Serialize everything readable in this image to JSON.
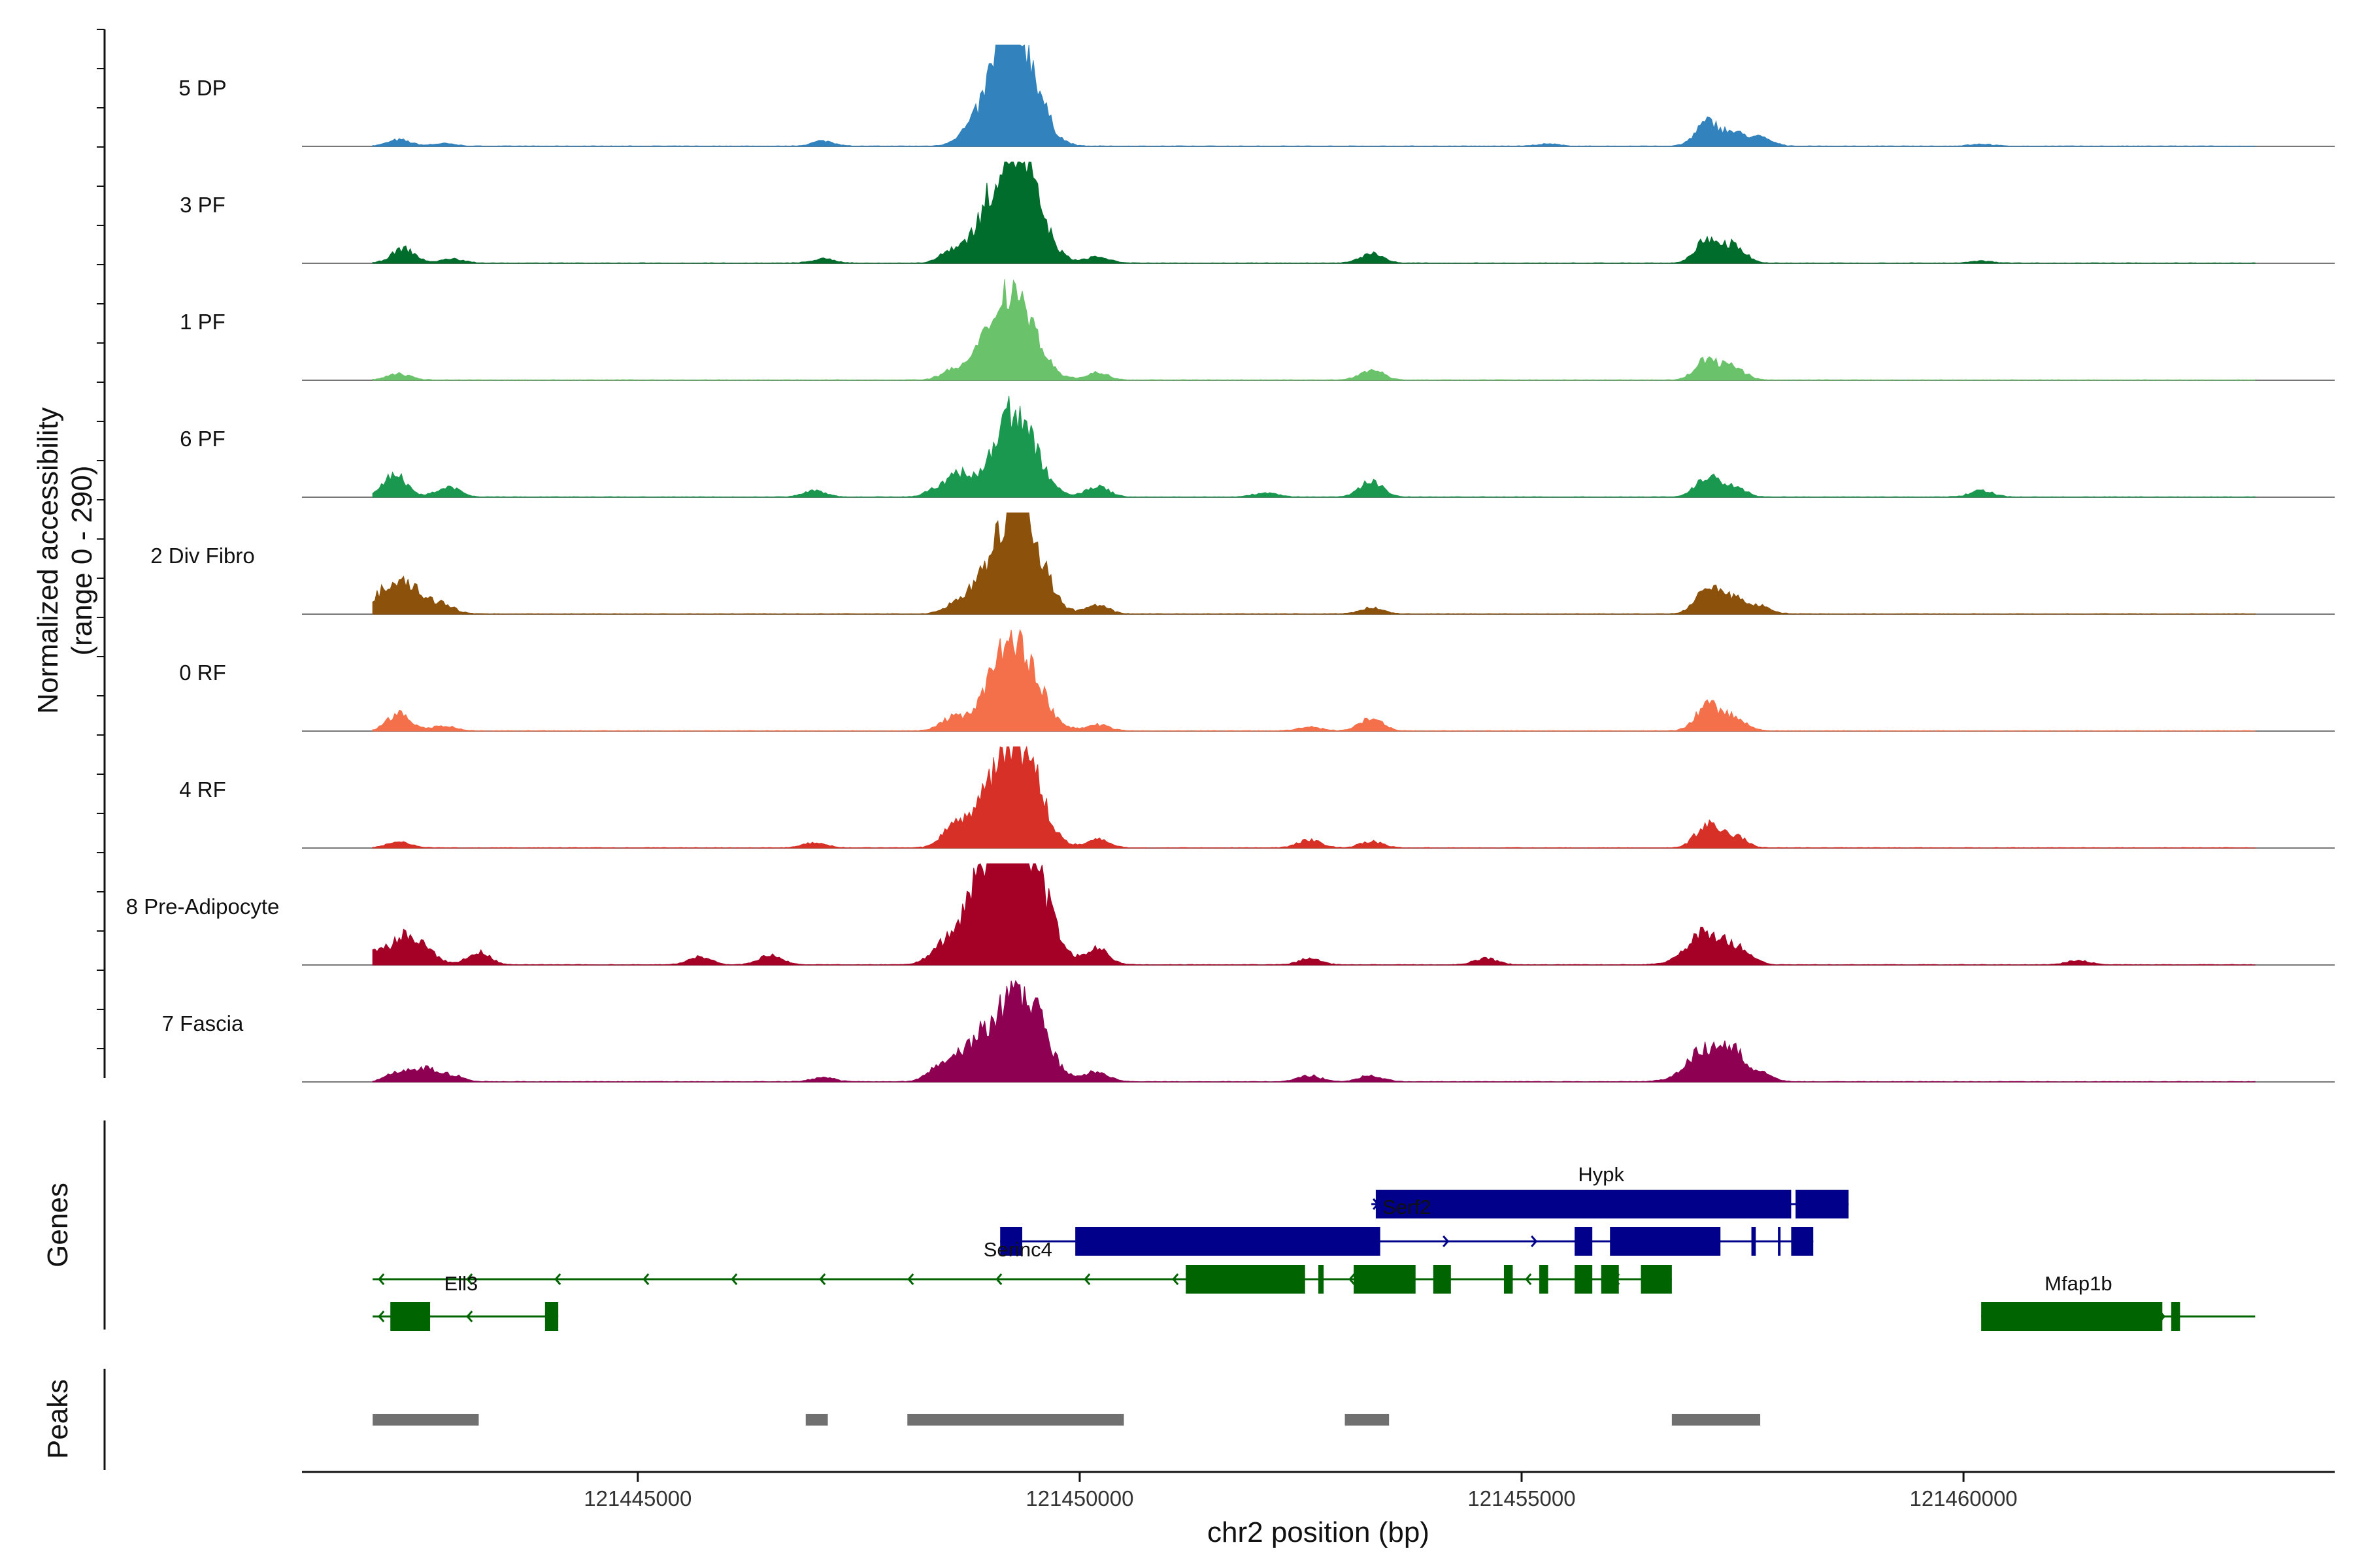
{
  "chart_data": {
    "type": "area",
    "title": "",
    "ylabel": "Normalized accessibility",
    "ylabel_range": "(range 0 - 290)",
    "xlabel": "chr2 position (bp)",
    "x_range": [
      121441200,
      121464200
    ],
    "y_range": [
      0,
      290
    ],
    "x_ticks": [
      {
        "value": 121445000,
        "label": "121445000"
      },
      {
        "value": 121450000,
        "label": "121450000"
      },
      {
        "value": 121455000,
        "label": "121455000"
      },
      {
        "value": 121460000,
        "label": "121460000"
      }
    ],
    "tracks": [
      {
        "name": "5 DP",
        "color": "#3182bd",
        "peaks": [
          [
            121442300,
            0.06
          ],
          [
            121442800,
            0.025
          ],
          [
            121447100,
            0.05
          ],
          [
            121448700,
            0.07
          ],
          [
            121449100,
            0.38
          ],
          [
            121449250,
            0.6
          ],
          [
            121449350,
            0.42
          ],
          [
            121455300,
            0.02
          ],
          [
            121457100,
            0.23
          ],
          [
            121457400,
            0.12
          ],
          [
            121457700,
            0.08
          ],
          [
            121460200,
            0.02
          ]
        ]
      },
      {
        "name": "3 PF",
        "color": "#006d2c",
        "peaks": [
          [
            121442350,
            0.14
          ],
          [
            121442900,
            0.04
          ],
          [
            121447100,
            0.04
          ],
          [
            121448550,
            0.1
          ],
          [
            121449000,
            0.35
          ],
          [
            121449250,
            0.62
          ],
          [
            121449400,
            0.4
          ],
          [
            121450200,
            0.06
          ],
          [
            121453300,
            0.09
          ],
          [
            121457100,
            0.22
          ],
          [
            121457400,
            0.17
          ],
          [
            121460200,
            0.02
          ]
        ]
      },
      {
        "name": "1 PF",
        "color": "#6ac36a",
        "peaks": [
          [
            121442300,
            0.06
          ],
          [
            121448550,
            0.08
          ],
          [
            121448800,
            0.06
          ],
          [
            121449150,
            0.6
          ],
          [
            121449350,
            0.4
          ],
          [
            121450200,
            0.07
          ],
          [
            121453300,
            0.1
          ],
          [
            121457100,
            0.2
          ],
          [
            121457400,
            0.12
          ]
        ]
      },
      {
        "name": "6 PF",
        "color": "#1a9850",
        "peaks": [
          [
            121442250,
            0.22
          ],
          [
            121442850,
            0.1
          ],
          [
            121447000,
            0.06
          ],
          [
            121448400,
            0.08
          ],
          [
            121448650,
            0.2
          ],
          [
            121449200,
            0.55
          ],
          [
            121449350,
            0.35
          ],
          [
            121450200,
            0.1
          ],
          [
            121452100,
            0.04
          ],
          [
            121453300,
            0.15
          ],
          [
            121457100,
            0.2
          ],
          [
            121457400,
            0.1
          ],
          [
            121460200,
            0.06
          ]
        ]
      },
      {
        "name": "2 Div Fibro",
        "color": "#8c510a",
        "peaks": [
          [
            121442300,
            0.35
          ],
          [
            121442800,
            0.08
          ],
          [
            121448600,
            0.1
          ],
          [
            121448850,
            0.18
          ],
          [
            121449250,
            0.82
          ],
          [
            121449400,
            0.4
          ],
          [
            121450200,
            0.08
          ],
          [
            121453300,
            0.06
          ],
          [
            121457100,
            0.28
          ],
          [
            121457400,
            0.15
          ],
          [
            121457700,
            0.07
          ]
        ]
      },
      {
        "name": "0 RF",
        "color": "#f4704a",
        "peaks": [
          [
            121442300,
            0.17
          ],
          [
            121442800,
            0.05
          ],
          [
            121448550,
            0.12
          ],
          [
            121448850,
            0.08
          ],
          [
            121449200,
            0.68
          ],
          [
            121449400,
            0.35
          ],
          [
            121450200,
            0.06
          ],
          [
            121452600,
            0.04
          ],
          [
            121453300,
            0.12
          ],
          [
            121457100,
            0.25
          ],
          [
            121457400,
            0.13
          ]
        ]
      },
      {
        "name": "4 RF",
        "color": "#d73027",
        "peaks": [
          [
            121442300,
            0.06
          ],
          [
            121447000,
            0.05
          ],
          [
            121448550,
            0.12
          ],
          [
            121448900,
            0.35
          ],
          [
            121449250,
            0.68
          ],
          [
            121449400,
            0.4
          ],
          [
            121450200,
            0.08
          ],
          [
            121452600,
            0.08
          ],
          [
            121453300,
            0.06
          ],
          [
            121457100,
            0.22
          ],
          [
            121457400,
            0.12
          ]
        ]
      },
      {
        "name": "8 Pre-Adipocyte",
        "color": "#a50026",
        "peaks": [
          [
            121442050,
            0.12
          ],
          [
            121442350,
            0.25
          ],
          [
            121442600,
            0.15
          ],
          [
            121443200,
            0.12
          ],
          [
            121445700,
            0.08
          ],
          [
            121446500,
            0.1
          ],
          [
            121448400,
            0.12
          ],
          [
            121448850,
            0.55
          ],
          [
            121449050,
            0.45
          ],
          [
            121449300,
            0.85
          ],
          [
            121449500,
            0.45
          ],
          [
            121450200,
            0.15
          ],
          [
            121452600,
            0.06
          ],
          [
            121454600,
            0.06
          ],
          [
            121457100,
            0.32
          ],
          [
            121457500,
            0.1
          ],
          [
            121461300,
            0.04
          ]
        ]
      },
      {
        "name": "7 Fascia",
        "color": "#8e0152",
        "peaks": [
          [
            121442300,
            0.1
          ],
          [
            121442600,
            0.12
          ],
          [
            121442900,
            0.06
          ],
          [
            121447100,
            0.04
          ],
          [
            121448400,
            0.12
          ],
          [
            121448850,
            0.4
          ],
          [
            121449300,
            0.6
          ],
          [
            121449450,
            0.35
          ],
          [
            121450200,
            0.1
          ],
          [
            121452600,
            0.06
          ],
          [
            121453300,
            0.06
          ],
          [
            121457100,
            0.32
          ],
          [
            121457400,
            0.2
          ],
          [
            121457700,
            0.08
          ]
        ]
      }
    ],
    "genes_label": "Genes",
    "peaks_label": "Peaks",
    "genes": [
      {
        "name": "Hypk",
        "strand": "+",
        "color": "#00008b",
        "start": 121453300,
        "end": 121458700,
        "exons": [
          [
            121453350,
            121458050
          ],
          [
            121458100,
            121458700
          ]
        ],
        "label_pos": 121455900
      },
      {
        "name": "Serf2",
        "strand": "+",
        "color": "#00008b",
        "start": 121449100,
        "end": 121458300,
        "exons": [
          [
            121449100,
            121449350
          ],
          [
            121449950,
            121453400
          ],
          [
            121455600,
            121455800
          ],
          [
            121456000,
            121457250
          ],
          [
            121457600,
            121457650
          ],
          [
            121457900,
            121457930
          ],
          [
            121458050,
            121458300
          ]
        ],
        "label_pos": 121453700
      },
      {
        "name": "Serinc4",
        "strand": "-",
        "color": "#006400",
        "start": 121442000,
        "end": 121456700,
        "exons": [
          [
            121451200,
            121452550
          ],
          [
            121452700,
            121452760
          ],
          [
            121453100,
            121453800
          ],
          [
            121454000,
            121454200
          ],
          [
            121454800,
            121454900
          ],
          [
            121455200,
            121455300
          ],
          [
            121455600,
            121455800
          ],
          [
            121455900,
            121456100
          ],
          [
            121456350,
            121456700
          ]
        ],
        "label_pos": 121449300
      },
      {
        "name": "Ell3",
        "strand": "-",
        "color": "#006400",
        "start": 121442000,
        "end": 121444100,
        "exons": [
          [
            121442200,
            121442650
          ],
          [
            121443950,
            121444100
          ]
        ],
        "label_pos": 121443000
      },
      {
        "name": "Mfap1b",
        "strand": "+",
        "color": "#006400",
        "start": 121460200,
        "end": 121463300,
        "exons": [
          [
            121460200,
            121462250
          ],
          [
            121462350,
            121462450
          ]
        ],
        "label_pos": 121461300
      }
    ],
    "peak_regions": [
      [
        121442000,
        121443200
      ],
      [
        121446900,
        121447150
      ],
      [
        121448050,
        121450500
      ],
      [
        121453000,
        121453500
      ],
      [
        121456700,
        121457700
      ]
    ]
  }
}
